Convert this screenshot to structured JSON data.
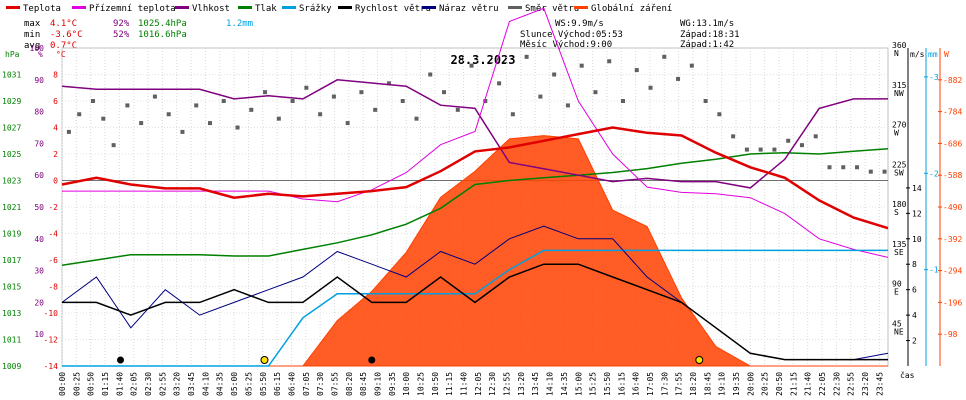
{
  "chart_data": {
    "type": "line",
    "title": "28.3.2023",
    "legend": [
      {
        "name": "Teplota",
        "color": "#e00000"
      },
      {
        "name": "Přízemní teplota",
        "color": "#e000e0"
      },
      {
        "name": "Vlhkost",
        "color": "#800080"
      },
      {
        "name": "Tlak",
        "color": "#008000"
      },
      {
        "name": "Srážky",
        "color": "#00a0e0"
      },
      {
        "name": "Rychlost větru",
        "color": "#000000"
      },
      {
        "name": "Náraz větru",
        "color": "#000080"
      },
      {
        "name": "Směr větru",
        "color": "#606060"
      },
      {
        "name": "Globální záření",
        "color": "#ff4000"
      }
    ],
    "stats": {
      "max": {
        "label": "max",
        "temp": "4.1°C",
        "hum": "92%",
        "press": "1025.4hPa",
        "rain": "1.2mm"
      },
      "min": {
        "label": "min",
        "temp": "-3.6°C",
        "hum": "52%",
        "press": "1016.6hPa"
      },
      "avg": {
        "label": "avg",
        "temp": "0.7°C"
      }
    },
    "info": {
      "ws": "WS:9.9m/s",
      "wg": "WG:13.1m/s",
      "slunce": "Slunce Východ:05:53",
      "slunce_zapad": "Západ:18:31",
      "mesic": "Měsíc  Východ:9:00",
      "mesic_zapad": "Západ:1:42"
    },
    "axes": {
      "hpa": {
        "unit": "hPa",
        "ticks": [
          1009,
          1011,
          1013,
          1015,
          1017,
          1019,
          1021,
          1023,
          1025,
          1027,
          1029,
          1031
        ],
        "range": [
          1009,
          1033
        ],
        "color": "#008000"
      },
      "pct": {
        "unit": "%",
        "ticks": [
          10,
          20,
          30,
          40,
          50,
          60,
          70,
          80,
          90,
          100
        ],
        "range": [
          0,
          100
        ],
        "color": "#800080"
      },
      "degc": {
        "unit": "°C",
        "ticks": [
          -14,
          -12,
          -10,
          -8,
          -6,
          -4,
          -2,
          0,
          2,
          4,
          6,
          8
        ],
        "range": [
          -14,
          10
        ],
        "color": "#e00000"
      },
      "dir": {
        "unit": "",
        "ticks": [
          {
            "v": 45,
            "l": "45",
            "s": "NE"
          },
          {
            "v": 90,
            "l": "90",
            "s": "E"
          },
          {
            "v": 135,
            "l": "135",
            "s": "SE"
          },
          {
            "v": 180,
            "l": "180",
            "s": "S"
          },
          {
            "v": 225,
            "l": "225",
            "s": "SW"
          },
          {
            "v": 270,
            "l": "270",
            "s": "W"
          },
          {
            "v": 315,
            "l": "315",
            "s": "NW"
          },
          {
            "v": 360,
            "l": "360",
            "s": "N"
          }
        ],
        "range": [
          0,
          360
        ]
      },
      "ms": {
        "unit": "m/s",
        "ticks": [
          2,
          4,
          6,
          8,
          10,
          12,
          14
        ],
        "range": [
          0,
          25
        ]
      },
      "mm": {
        "unit": "mm",
        "ticks": [
          1,
          2,
          3
        ],
        "range": [
          0,
          3.3
        ],
        "color": "#00a0e0"
      },
      "wm2": {
        "unit": "W",
        "ticks": [
          98,
          196,
          294,
          392,
          490,
          588,
          686,
          784,
          882
        ],
        "range": [
          0,
          980
        ],
        "color": "#ff4000"
      },
      "time_label": "čas",
      "time_ticks": [
        "00:00",
        "00:25",
        "00:50",
        "01:15",
        "01:40",
        "02:05",
        "02:30",
        "02:55",
        "03:20",
        "03:45",
        "04:10",
        "04:35",
        "05:00",
        "05:25",
        "05:50",
        "06:15",
        "06:40",
        "07:05",
        "07:30",
        "07:55",
        "08:20",
        "08:45",
        "09:10",
        "09:35",
        "10:00",
        "10:25",
        "10:50",
        "11:15",
        "11:40",
        "12:05",
        "12:30",
        "12:55",
        "13:20",
        "13:45",
        "14:10",
        "14:35",
        "15:00",
        "15:25",
        "15:50",
        "16:15",
        "16:40",
        "17:05",
        "17:30",
        "17:55",
        "18:20",
        "18:45",
        "19:10",
        "19:35",
        "20:00",
        "20:25",
        "20:50",
        "21:15",
        "21:40",
        "22:05",
        "22:30",
        "22:55",
        "23:20",
        "23:45"
      ]
    },
    "hours": [
      0,
      1,
      2,
      3,
      4,
      5,
      6,
      7,
      8,
      9,
      10,
      11,
      12,
      13,
      14,
      15,
      16,
      17,
      18,
      19,
      20,
      21,
      22,
      23,
      24
    ],
    "series": [
      {
        "name": "Teplota",
        "unit": "°C",
        "values": [
          -0.3,
          0.2,
          -0.3,
          -0.6,
          -0.6,
          -1.3,
          -1.0,
          -1.2,
          -1.0,
          -0.8,
          -0.5,
          0.7,
          2.2,
          2.5,
          3.0,
          3.5,
          4.0,
          3.6,
          3.4,
          2.1,
          1.0,
          0.2,
          -1.5,
          -2.8,
          -3.6
        ]
      },
      {
        "name": "Přízemní teplota",
        "unit": "°C",
        "values": [
          -0.8,
          -0.8,
          -0.8,
          -0.8,
          -0.8,
          -0.8,
          -0.8,
          -1.4,
          -1.6,
          -0.7,
          0.6,
          2.7,
          3.7,
          12.0,
          13.0,
          6.0,
          2.0,
          -0.5,
          -0.9,
          -1.0,
          -1.3,
          -2.5,
          -4.4,
          -5.2,
          -5.8
        ]
      },
      {
        "name": "Vlhkost",
        "unit": "%",
        "values": [
          88,
          87,
          87,
          87,
          87,
          84,
          85,
          84,
          90,
          89,
          88,
          82,
          81,
          64,
          62,
          60,
          58,
          59,
          58,
          58,
          56,
          65,
          81,
          84,
          84
        ]
      },
      {
        "name": "Tlak",
        "unit": "hPa",
        "values": [
          1016.6,
          1017.0,
          1017.4,
          1017.4,
          1017.4,
          1017.3,
          1017.3,
          1017.8,
          1018.3,
          1018.9,
          1019.7,
          1020.9,
          1022.7,
          1023.0,
          1023.2,
          1023.4,
          1023.6,
          1023.9,
          1024.3,
          1024.6,
          1025.0,
          1025.1,
          1025.0,
          1025.2,
          1025.4
        ]
      },
      {
        "name": "Srážky",
        "unit": "mm",
        "values": [
          0,
          0,
          0,
          0,
          0,
          0,
          0,
          0.5,
          0.75,
          0.75,
          0.75,
          0.75,
          0.75,
          1.0,
          1.2,
          1.2,
          1.2,
          1.2,
          1.2,
          1.2,
          1.2,
          1.2,
          1.2,
          1.2,
          1.2
        ]
      },
      {
        "name": "Rychlost větru",
        "unit": "m/s",
        "values": [
          5,
          5,
          4,
          5,
          5,
          6,
          5,
          5,
          7,
          5,
          5,
          7,
          5,
          7,
          8,
          8,
          7,
          6,
          5,
          3,
          1,
          0.5,
          0.5,
          0.5,
          0.5
        ]
      },
      {
        "name": "Náraz větru",
        "unit": "m/s",
        "values": [
          5,
          7,
          3,
          6,
          4,
          5,
          6,
          7,
          9,
          8,
          7,
          9,
          8,
          10,
          11,
          10,
          10,
          7,
          5,
          3,
          1,
          0.5,
          0.5,
          0.5,
          1
        ]
      },
      {
        "name": "Globální záření",
        "unit": "W/m²",
        "values": [
          0,
          0,
          0,
          0,
          0,
          0,
          0,
          0,
          140,
          230,
          350,
          520,
          600,
          700,
          710,
          700,
          480,
          430,
          210,
          60,
          0,
          0,
          0,
          0,
          0
        ]
      }
    ],
    "dir_points": [
      {
        "h": 0.2,
        "v": 265
      },
      {
        "h": 0.5,
        "v": 285
      },
      {
        "h": 0.9,
        "v": 300
      },
      {
        "h": 1.2,
        "v": 280
      },
      {
        "h": 1.5,
        "v": 250
      },
      {
        "h": 1.9,
        "v": 295
      },
      {
        "h": 2.3,
        "v": 275
      },
      {
        "h": 2.7,
        "v": 305
      },
      {
        "h": 3.1,
        "v": 285
      },
      {
        "h": 3.5,
        "v": 265
      },
      {
        "h": 3.9,
        "v": 295
      },
      {
        "h": 4.3,
        "v": 275
      },
      {
        "h": 4.7,
        "v": 300
      },
      {
        "h": 5.1,
        "v": 270
      },
      {
        "h": 5.5,
        "v": 290
      },
      {
        "h": 5.9,
        "v": 310
      },
      {
        "h": 6.3,
        "v": 280
      },
      {
        "h": 6.7,
        "v": 300
      },
      {
        "h": 7.1,
        "v": 315
      },
      {
        "h": 7.5,
        "v": 285
      },
      {
        "h": 7.9,
        "v": 305
      },
      {
        "h": 8.3,
        "v": 275
      },
      {
        "h": 8.7,
        "v": 310
      },
      {
        "h": 9.1,
        "v": 290
      },
      {
        "h": 9.5,
        "v": 320
      },
      {
        "h": 9.9,
        "v": 300
      },
      {
        "h": 10.3,
        "v": 280
      },
      {
        "h": 10.7,
        "v": 330
      },
      {
        "h": 11.1,
        "v": 310
      },
      {
        "h": 11.5,
        "v": 290
      },
      {
        "h": 11.9,
        "v": 340
      },
      {
        "h": 12.3,
        "v": 300
      },
      {
        "h": 12.7,
        "v": 320
      },
      {
        "h": 13.1,
        "v": 285
      },
      {
        "h": 13.5,
        "v": 350
      },
      {
        "h": 13.9,
        "v": 305
      },
      {
        "h": 14.3,
        "v": 330
      },
      {
        "h": 14.7,
        "v": 295
      },
      {
        "h": 15.1,
        "v": 340
      },
      {
        "h": 15.5,
        "v": 310
      },
      {
        "h": 15.9,
        "v": 345
      },
      {
        "h": 16.3,
        "v": 300
      },
      {
        "h": 16.7,
        "v": 335
      },
      {
        "h": 17.1,
        "v": 315
      },
      {
        "h": 17.5,
        "v": 350
      },
      {
        "h": 17.9,
        "v": 325
      },
      {
        "h": 18.3,
        "v": 340
      },
      {
        "h": 18.7,
        "v": 300
      },
      {
        "h": 19.1,
        "v": 285
      },
      {
        "h": 19.5,
        "v": 260
      },
      {
        "h": 19.9,
        "v": 245
      },
      {
        "h": 20.3,
        "v": 245
      },
      {
        "h": 20.7,
        "v": 245
      },
      {
        "h": 21.1,
        "v": 255
      },
      {
        "h": 21.5,
        "v": 250
      },
      {
        "h": 21.9,
        "v": 260
      },
      {
        "h": 22.3,
        "v": 225
      },
      {
        "h": 22.7,
        "v": 225
      },
      {
        "h": 23.1,
        "v": 225
      },
      {
        "h": 23.5,
        "v": 220
      },
      {
        "h": 23.9,
        "v": 220
      }
    ]
  }
}
